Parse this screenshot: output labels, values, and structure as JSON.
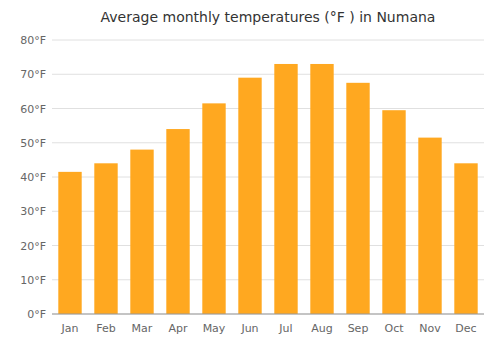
{
  "chart_data": {
    "type": "bar",
    "title": "Average monthly temperatures (°F ) in Numana",
    "categories": [
      "Jan",
      "Feb",
      "Mar",
      "Apr",
      "May",
      "Jun",
      "Jul",
      "Aug",
      "Sep",
      "Oct",
      "Nov",
      "Dec"
    ],
    "values": [
      41.5,
      44.0,
      48.0,
      54.0,
      61.5,
      69.0,
      73.0,
      73.0,
      67.5,
      59.5,
      51.5,
      44.0
    ],
    "color": "#FFA820",
    "ylim": [
      0,
      80
    ],
    "yticks": [
      {
        "value": 0,
        "label": "0°F"
      },
      {
        "value": 10,
        "label": "10°F"
      },
      {
        "value": 20,
        "label": "20°F"
      },
      {
        "value": 30,
        "label": "30°F"
      },
      {
        "value": 40,
        "label": "40°F"
      },
      {
        "value": 50,
        "label": "50°F"
      },
      {
        "value": 60,
        "label": "60°F"
      },
      {
        "value": 70,
        "label": "70°F"
      },
      {
        "value": 80,
        "label": "80°F"
      }
    ],
    "grid": true
  }
}
